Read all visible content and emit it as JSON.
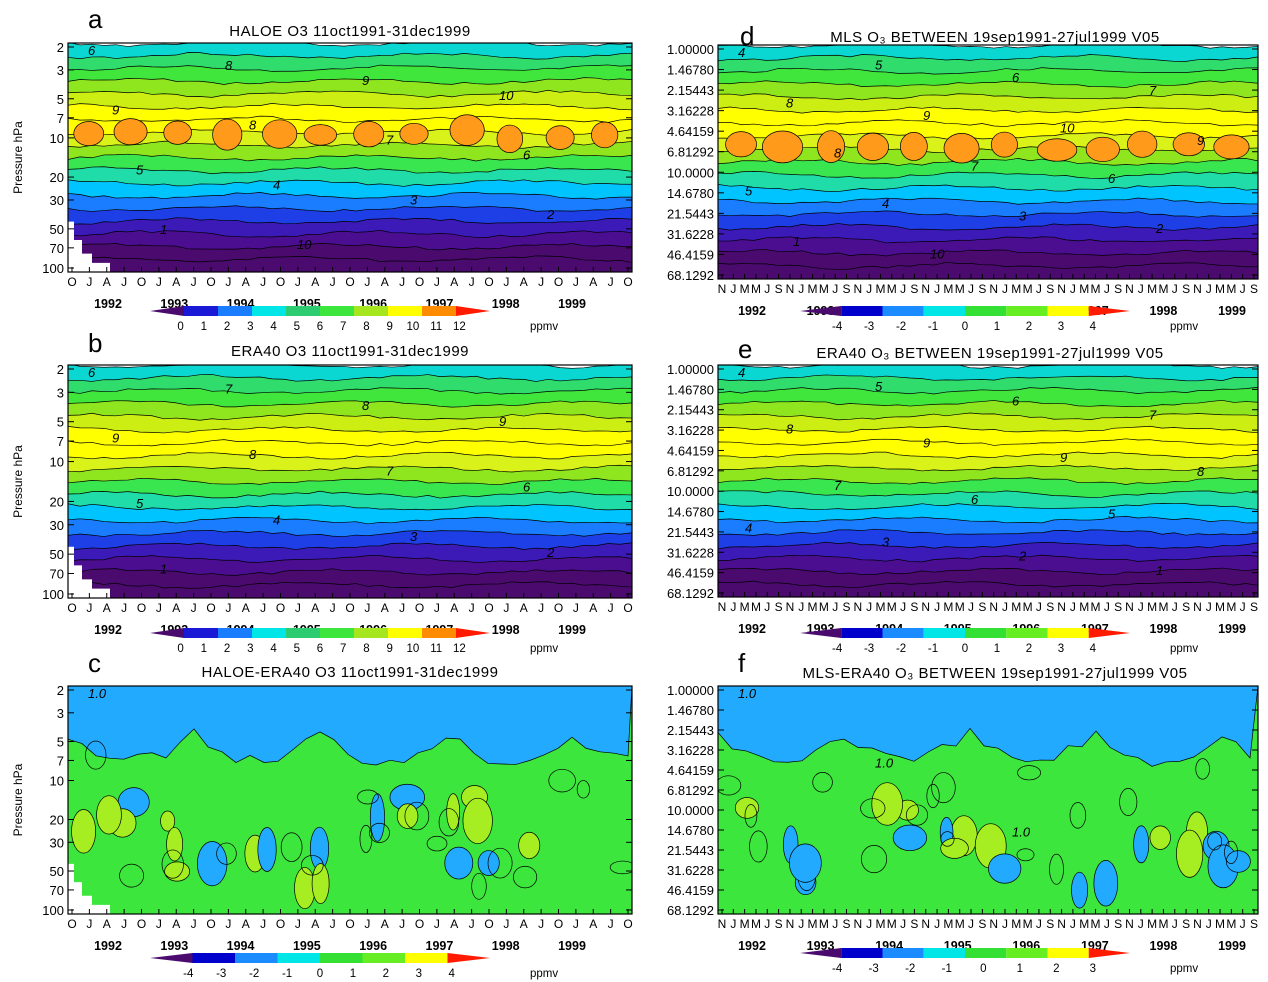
{
  "colors": {
    "levels": [
      "#4a0a6e",
      "#1919d6",
      "#1a7dff",
      "#00e6e6",
      "#2ecc71",
      "#3ce63c",
      "#a6e61e",
      "#ffff00",
      "#ff8c00",
      "#ff1a00"
    ],
    "diff_levels": [
      "#4a0a6e",
      "#0000cd",
      "#1a8cff",
      "#00e6e6",
      "#33e033",
      "#66ee22",
      "#ffff00",
      "#ff1a00"
    ]
  },
  "panels": [
    {
      "id": "a",
      "letter": "a",
      "title": "HALOE O3 11oct1991-31dec1999",
      "ylabel": "Pressure hPa",
      "yticks": [
        "2",
        "3",
        "5",
        "7",
        "10",
        "20",
        "30",
        "50",
        "70",
        "100"
      ],
      "month_ticks": [
        "O",
        "J",
        "A",
        "J",
        "O",
        "J",
        "A",
        "J",
        "O",
        "J",
        "A",
        "J",
        "O",
        "J",
        "A",
        "J",
        "O",
        "J",
        "A",
        "J",
        "O",
        "J",
        "A",
        "J",
        "O",
        "J",
        "A",
        "J",
        "O",
        "J",
        "A",
        "J",
        "O"
      ],
      "years": [
        "1992",
        "1993",
        "1994",
        "1995",
        "1996",
        "1997",
        "1998",
        "1999"
      ],
      "contour_labels": [
        "6",
        "8",
        "9",
        "10",
        "9",
        "8",
        "7",
        "6",
        "5",
        "4",
        "3",
        "2",
        "1",
        "10"
      ],
      "colorbar": {
        "ticks": [
          "0",
          "1",
          "2",
          "3",
          "4",
          "5",
          "6",
          "7",
          "8",
          "9",
          "10",
          "11",
          "12"
        ],
        "unit": "ppmv"
      }
    },
    {
      "id": "b",
      "letter": "b",
      "title": "ERA40 O3 11oct1991-31dec1999",
      "ylabel": "Pressure hPa",
      "yticks": [
        "2",
        "3",
        "5",
        "7",
        "10",
        "20",
        "30",
        "50",
        "70",
        "100"
      ],
      "month_ticks": [
        "O",
        "J",
        "A",
        "J",
        "O",
        "J",
        "A",
        "J",
        "O",
        "J",
        "A",
        "J",
        "O",
        "J",
        "A",
        "J",
        "O",
        "J",
        "A",
        "J",
        "O",
        "J",
        "A",
        "J",
        "O",
        "J",
        "A",
        "J",
        "O",
        "J",
        "A",
        "J",
        "O"
      ],
      "years": [
        "1992",
        "1993",
        "1994",
        "1995",
        "1996",
        "1997",
        "1998",
        "1999"
      ],
      "contour_labels": [
        "6",
        "7",
        "8",
        "9",
        "9",
        "8",
        "7",
        "6",
        "5",
        "4",
        "3",
        "2",
        "1"
      ],
      "colorbar": {
        "ticks": [
          "0",
          "1",
          "2",
          "3",
          "4",
          "5",
          "6",
          "7",
          "8",
          "9",
          "10",
          "11",
          "12"
        ],
        "unit": "ppmv"
      }
    },
    {
      "id": "c",
      "letter": "c",
      "title": "HALOE-ERA40 O3 11oct1991-31dec1999",
      "ylabel": "Pressure hPa",
      "yticks": [
        "2",
        "3",
        "5",
        "7",
        "10",
        "20",
        "30",
        "50",
        "70",
        "100"
      ],
      "month_ticks": [
        "O",
        "J",
        "A",
        "J",
        "O",
        "J",
        "A",
        "J",
        "O",
        "J",
        "A",
        "J",
        "O",
        "J",
        "A",
        "J",
        "O",
        "J",
        "A",
        "J",
        "O",
        "J",
        "A",
        "J",
        "O",
        "J",
        "A",
        "J",
        "O",
        "J",
        "A",
        "J",
        "O"
      ],
      "years": [
        "1992",
        "1993",
        "1994",
        "1995",
        "1996",
        "1997",
        "1998",
        "1999"
      ],
      "contour_labels": [
        "1.0"
      ],
      "colorbar": {
        "ticks": [
          "-4",
          "-3",
          "-2",
          "-1",
          "0",
          "1",
          "2",
          "3",
          "4"
        ],
        "unit": "ppmv"
      }
    },
    {
      "id": "d",
      "letter": "d",
      "title": "MLS O₃ BETWEEN 19sep1991-27jul1999 V05",
      "ylabel": "",
      "yticks": [
        "1.00000",
        "1.46780",
        "2.15443",
        "3.16228",
        "4.64159",
        "6.81292",
        "10.0000",
        "14.6780",
        "21.5443",
        "31.6228",
        "46.4159",
        "68.1292"
      ],
      "month_ticks": [
        "N",
        "J",
        "M",
        "M",
        "J",
        "S",
        "N",
        "J",
        "M",
        "M",
        "J",
        "S",
        "N",
        "J",
        "M",
        "M",
        "J",
        "S",
        "N",
        "J",
        "M",
        "M",
        "J",
        "S",
        "N",
        "J",
        "M",
        "M",
        "J",
        "S",
        "N",
        "J",
        "M",
        "M",
        "J",
        "S",
        "N",
        "J",
        "M",
        "M",
        "J",
        "S",
        "N",
        "J",
        "M",
        "M",
        "J",
        "S"
      ],
      "years": [
        "1992",
        "1993",
        "1994",
        "1995",
        "1996",
        "1997",
        "1998",
        "1999"
      ],
      "contour_labels": [
        "4",
        "5",
        "6",
        "7",
        "8",
        "9",
        "10",
        "9",
        "8",
        "7",
        "6",
        "5",
        "4",
        "3",
        "2",
        "1",
        "10"
      ],
      "colorbar": {
        "ticks": [
          "-4",
          "-3",
          "-2",
          "-1",
          "0",
          "1",
          "2",
          "3",
          "4"
        ],
        "unit": "ppmv"
      }
    },
    {
      "id": "e",
      "letter": "e",
      "title": "ERA40 O₃ BETWEEN 19sep1991-27jul1999 V05",
      "ylabel": "",
      "yticks": [
        "1.00000",
        "1.46780",
        "2.15443",
        "3.16228",
        "4.64159",
        "6.81292",
        "10.0000",
        "14.6780",
        "21.5443",
        "31.6228",
        "46.4159",
        "68.1292"
      ],
      "month_ticks": [
        "N",
        "J",
        "M",
        "M",
        "J",
        "S",
        "N",
        "J",
        "M",
        "M",
        "J",
        "S",
        "N",
        "J",
        "M",
        "M",
        "J",
        "S",
        "N",
        "J",
        "M",
        "M",
        "J",
        "S",
        "N",
        "J",
        "M",
        "M",
        "J",
        "S",
        "N",
        "J",
        "M",
        "M",
        "J",
        "S",
        "N",
        "J",
        "M",
        "M",
        "J",
        "S",
        "N",
        "J",
        "M",
        "M",
        "J",
        "S"
      ],
      "years": [
        "1992",
        "1993",
        "1994",
        "1995",
        "1996",
        "1997",
        "1998",
        "1999"
      ],
      "contour_labels": [
        "4",
        "5",
        "6",
        "7",
        "8",
        "9",
        "9",
        "8",
        "7",
        "6",
        "5",
        "4",
        "3",
        "2",
        "1"
      ],
      "colorbar": {
        "ticks": [
          "-4",
          "-3",
          "-2",
          "-1",
          "0",
          "1",
          "2",
          "3",
          "4"
        ],
        "unit": "ppmv"
      }
    },
    {
      "id": "f",
      "letter": "f",
      "title": "MLS-ERA40 O₃ BETWEEN 19sep1991-27jul1999 V05",
      "ylabel": "",
      "yticks": [
        "1.00000",
        "1.46780",
        "2.15443",
        "3.16228",
        "4.64159",
        "6.81292",
        "10.0000",
        "14.6780",
        "21.5443",
        "31.6228",
        "46.4159",
        "68.1292"
      ],
      "month_ticks": [
        "N",
        "J",
        "M",
        "M",
        "J",
        "S",
        "N",
        "J",
        "M",
        "M",
        "J",
        "S",
        "N",
        "J",
        "M",
        "M",
        "J",
        "S",
        "N",
        "J",
        "M",
        "M",
        "J",
        "S",
        "N",
        "J",
        "M",
        "M",
        "J",
        "S",
        "N",
        "J",
        "M",
        "M",
        "J",
        "S",
        "N",
        "J",
        "M",
        "M",
        "J",
        "S",
        "N",
        "J",
        "M",
        "M",
        "J",
        "S"
      ],
      "years": [
        "1992",
        "1993",
        "1994",
        "1995",
        "1996",
        "1997",
        "1998",
        "1999"
      ],
      "contour_labels": [
        "1.0",
        "1.0",
        "1.0"
      ],
      "colorbar": {
        "ticks": [
          "-4",
          "-3",
          "-2",
          "-1",
          "0",
          "1",
          "2",
          "3"
        ],
        "unit": "ppmv"
      }
    }
  ],
  "chart_data": [
    {
      "type": "heatmap",
      "title": "HALOE O3 11oct1991-31dec1999",
      "ylabel": "Pressure hPa",
      "x_range": [
        "1991-10",
        "1999-12"
      ],
      "y_range_hPa": [
        100,
        2
      ],
      "y_scale": "log",
      "zlevels": [
        0,
        1,
        2,
        3,
        4,
        5,
        6,
        7,
        8,
        9,
        10,
        11,
        12
      ],
      "zunit": "ppmv",
      "profile": {
        "pressure_hPa": [
          2,
          3,
          5,
          7,
          10,
          20,
          30,
          50,
          70,
          100
        ],
        "ozone_ppmv": [
          5,
          7,
          8,
          9,
          10,
          7,
          5,
          2.5,
          1.5,
          1
        ]
      }
    },
    {
      "type": "heatmap",
      "title": "ERA40 O3 11oct1991-31dec1999",
      "ylabel": "Pressure hPa",
      "x_range": [
        "1991-10",
        "1999-12"
      ],
      "y_range_hPa": [
        100,
        2
      ],
      "y_scale": "log",
      "zlevels": [
        0,
        1,
        2,
        3,
        4,
        5,
        6,
        7,
        8,
        9,
        10,
        11,
        12
      ],
      "zunit": "ppmv",
      "profile": {
        "pressure_hPa": [
          2,
          3,
          5,
          7,
          10,
          20,
          30,
          50,
          70,
          100
        ],
        "ozone_ppmv": [
          5.5,
          7,
          8,
          9,
          9,
          7,
          5,
          2.5,
          1,
          0.8
        ]
      }
    },
    {
      "type": "heatmap",
      "title": "HALOE-ERA40 O3 11oct1991-31dec1999",
      "ylabel": "Pressure hPa",
      "x_range": [
        "1991-10",
        "1999-12"
      ],
      "y_range_hPa": [
        100,
        2
      ],
      "y_scale": "log",
      "zlevels": [
        -4,
        -3,
        -2,
        -1,
        0,
        1,
        2,
        3,
        4
      ],
      "zunit": "ppmv",
      "profile": {
        "pressure_hPa": [
          2,
          3,
          5,
          7,
          10,
          20,
          30,
          50,
          70,
          100
        ],
        "ozone_ppmv": [
          -0.5,
          -0.5,
          -0.3,
          0.3,
          0.8,
          0.5,
          0.2,
          0.3,
          0.5,
          0.2
        ]
      }
    },
    {
      "type": "heatmap",
      "title": "MLS O₃ BETWEEN 19sep1991-27jul1999 V05",
      "x_range": [
        "1991-11",
        "1999-07"
      ],
      "y_range_hPa": [
        68.1292,
        1.0
      ],
      "y_scale": "log",
      "zlevels": [
        -4,
        -3,
        -2,
        -1,
        0,
        1,
        2,
        3,
        4
      ],
      "zunit": "ppmv",
      "profile": {
        "pressure_hPa": [
          1.0,
          1.4678,
          2.15443,
          3.16228,
          4.64159,
          6.81292,
          10.0,
          14.678,
          21.5443,
          31.6228,
          46.4159,
          68.1292
        ],
        "ozone_ppmv": [
          3.5,
          4.5,
          5.5,
          6.5,
          7.5,
          8.5,
          10,
          8.5,
          6,
          3.5,
          2,
          1
        ]
      }
    },
    {
      "type": "heatmap",
      "title": "ERA40 O₃ BETWEEN 19sep1991-27jul1999 V05",
      "x_range": [
        "1991-11",
        "1999-07"
      ],
      "y_range_hPa": [
        68.1292,
        1.0
      ],
      "y_scale": "log",
      "zlevels": [
        -4,
        -3,
        -2,
        -1,
        0,
        1,
        2,
        3,
        4
      ],
      "zunit": "ppmv",
      "profile": {
        "pressure_hPa": [
          1.0,
          1.4678,
          2.15443,
          3.16228,
          4.64159,
          6.81292,
          10.0,
          14.678,
          21.5443,
          31.6228,
          46.4159,
          68.1292
        ],
        "ozone_ppmv": [
          3.5,
          4.5,
          5.5,
          6.5,
          7.5,
          8.5,
          9,
          8,
          6,
          3.5,
          2,
          1
        ]
      }
    },
    {
      "type": "heatmap",
      "title": "MLS-ERA40 O₃ BETWEEN 19sep1991-27jul1999 V05",
      "x_range": [
        "1991-11",
        "1999-07"
      ],
      "y_range_hPa": [
        68.1292,
        1.0
      ],
      "y_scale": "log",
      "zlevels": [
        -4,
        -3,
        -2,
        -1,
        0,
        1,
        2,
        3
      ],
      "zunit": "ppmv",
      "profile": {
        "pressure_hPa": [
          1.0,
          1.4678,
          2.15443,
          3.16228,
          4.64159,
          6.81292,
          10.0,
          14.678,
          21.5443,
          31.6228,
          46.4159,
          68.1292
        ],
        "ozone_ppmv": [
          -0.5,
          -0.5,
          -0.5,
          -0.5,
          -0.3,
          0.3,
          0.8,
          1.0,
          0.5,
          0.3,
          0.3,
          0.3
        ]
      }
    }
  ]
}
